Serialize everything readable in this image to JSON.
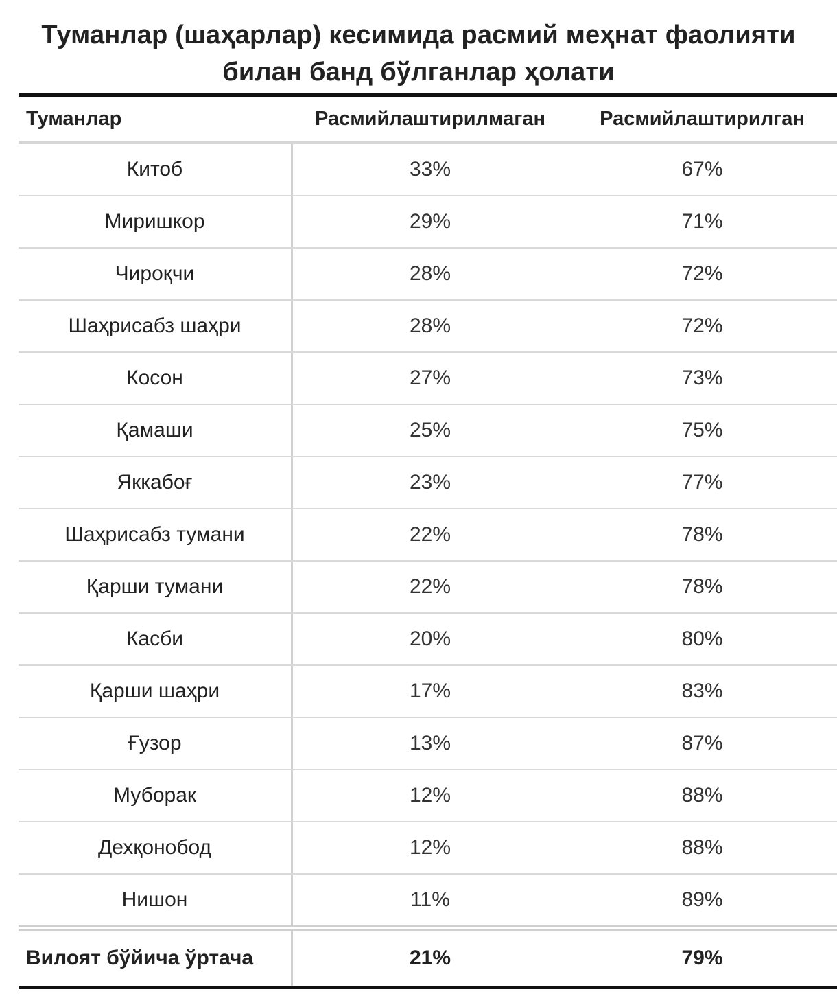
{
  "title": {
    "line1": "Туманлар (шаҳарлар) кесимида расмий меҳнат фаолияти",
    "line2": "билан банд бўлганлар ҳолати"
  },
  "chart_data": {
    "type": "table",
    "title": "Туманлар (шаҳарлар) кесимида расмий меҳнат фаолияти билан банд бўлганлар ҳолати",
    "columns": [
      "Туманлар",
      "Расмийлаштирилмаган",
      "Расмийлаштирилган"
    ],
    "rows": [
      {
        "name": "Китоб",
        "unformal": "33%",
        "formal": "67%"
      },
      {
        "name": "Миришкор",
        "unformal": "29%",
        "formal": "71%"
      },
      {
        "name": "Чироқчи",
        "unformal": "28%",
        "formal": "72%"
      },
      {
        "name": "Шаҳрисабз шаҳри",
        "unformal": "28%",
        "formal": "72%"
      },
      {
        "name": "Косон",
        "unformal": "27%",
        "formal": "73%"
      },
      {
        "name": "Қамаши",
        "unformal": "25%",
        "formal": "75%"
      },
      {
        "name": "Яккабоғ",
        "unformal": "23%",
        "formal": "77%"
      },
      {
        "name": "Шаҳрисабз тумани",
        "unformal": "22%",
        "formal": "78%"
      },
      {
        "name": "Қарши тумани",
        "unformal": "22%",
        "formal": "78%"
      },
      {
        "name": "Касби",
        "unformal": "20%",
        "formal": "80%"
      },
      {
        "name": "Қарши шаҳри",
        "unformal": "17%",
        "formal": "83%"
      },
      {
        "name": "Ғузор",
        "unformal": "13%",
        "formal": "87%"
      },
      {
        "name": "Муборак",
        "unformal": "12%",
        "formal": "88%"
      },
      {
        "name": "Дехқонобод",
        "unformal": "12%",
        "formal": "88%"
      },
      {
        "name": "Нишон",
        "unformal": "11%",
        "formal": "89%"
      }
    ],
    "total": {
      "name": "Вилоят бўйича ўртача",
      "unformal": "21%",
      "formal": "79%"
    }
  }
}
